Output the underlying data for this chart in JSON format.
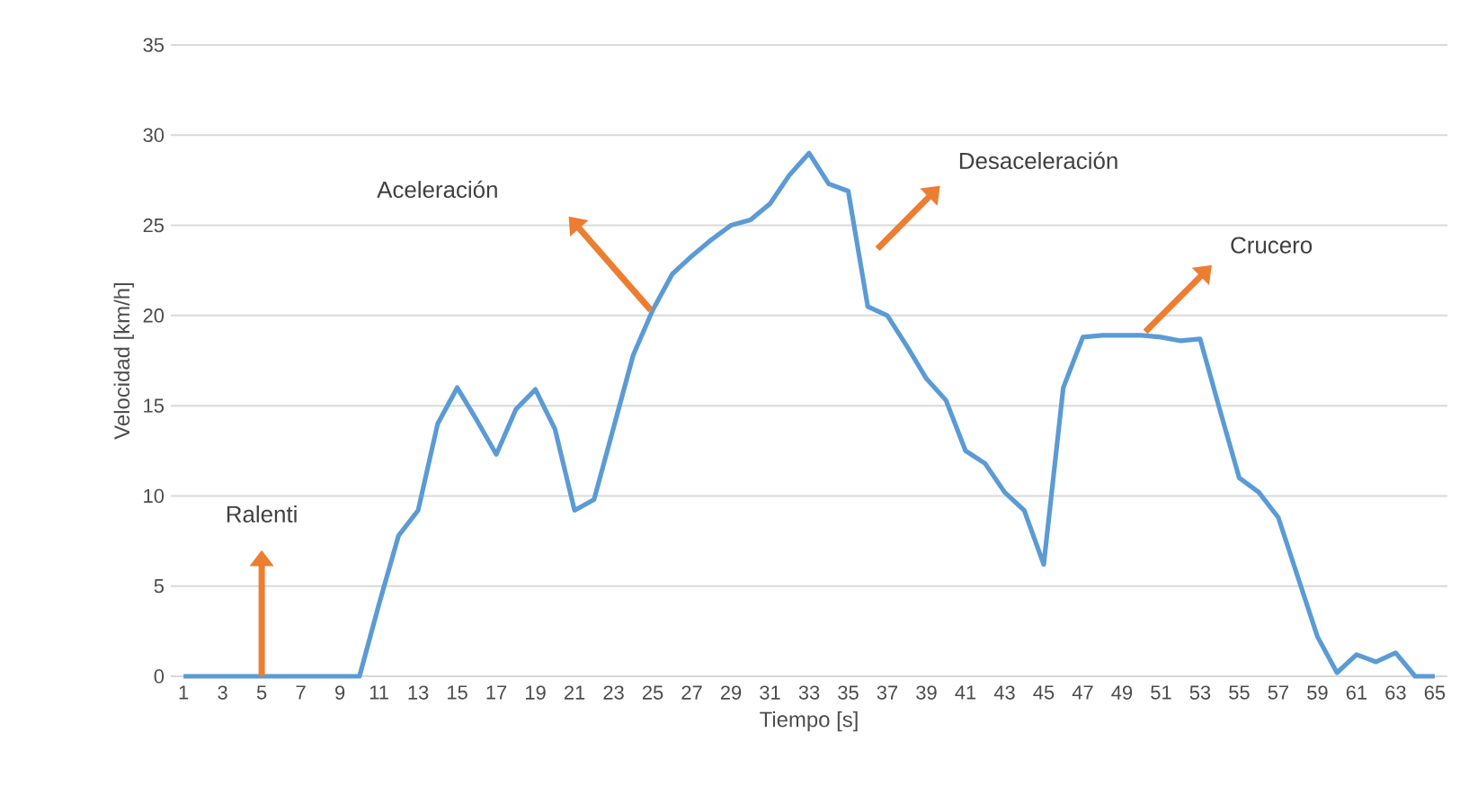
{
  "chart_data": {
    "type": "line",
    "xlabel": "Tiempo [s]",
    "ylabel": "Velocidad [km/h]",
    "categories": [
      "1",
      null,
      "3",
      null,
      "5",
      null,
      "7",
      null,
      "9",
      null,
      "11",
      null,
      "13",
      null,
      "15",
      null,
      "17",
      null,
      "19",
      null,
      "21",
      null,
      "23",
      null,
      "25",
      null,
      "27",
      null,
      "29",
      null,
      "31",
      null,
      "33",
      null,
      "35",
      null,
      "37",
      null,
      "39",
      null,
      "41",
      null,
      "43",
      null,
      "45",
      null,
      "47",
      null,
      "49",
      null,
      "51",
      null,
      "53",
      null,
      "55",
      null,
      "57",
      null,
      "59",
      null,
      "61",
      null,
      "63",
      null,
      "65"
    ],
    "series": [
      {
        "color": "#5b9bd5",
        "values": [
          0,
          0,
          0,
          0,
          0,
          0,
          0,
          0,
          0,
          0,
          4,
          7.8,
          9.2,
          14,
          16,
          14.2,
          12.3,
          14.8,
          15.9,
          13.7,
          9.2,
          9.8,
          13.8,
          17.8,
          20.3,
          22.3,
          23.3,
          24.2,
          25,
          25.3,
          26.2,
          27.8,
          29,
          27.3,
          26.9,
          20.5,
          20,
          18.3,
          16.5,
          15.3,
          12.5,
          11.8,
          10.2,
          9.2,
          6.2,
          16,
          18.8,
          18.9,
          18.9,
          18.9,
          18.8,
          18.6,
          18.7,
          14.8,
          11,
          10.2,
          8.8,
          5.5,
          2.2,
          0.2,
          1.2,
          0.8,
          1.3,
          0,
          0
        ]
      }
    ],
    "ylim": [
      0,
      35
    ],
    "yticks": [
      0,
      5,
      10,
      15,
      20,
      25,
      30,
      35
    ],
    "grid": "y",
    "annotations": [
      "Ralenti",
      "Aceleración",
      "Desaceleración",
      "Crucero"
    ]
  }
}
